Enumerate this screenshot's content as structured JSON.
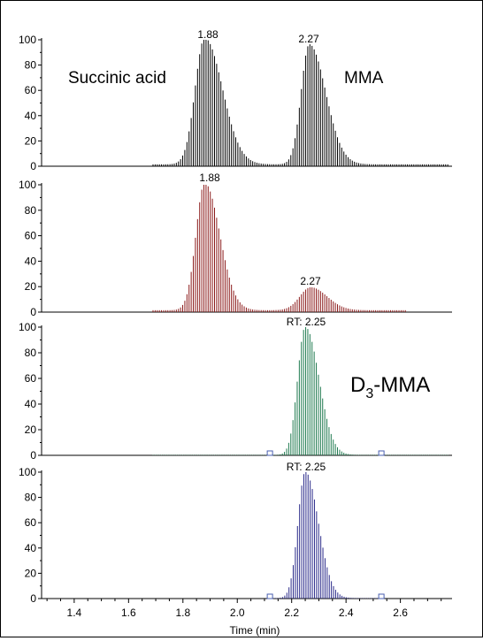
{
  "chart_data": [
    {
      "type": "line",
      "xlabel": "",
      "ylabel": "",
      "xlim": [
        1.28,
        2.79
      ],
      "ylim": [
        0,
        100
      ],
      "color": "#000000",
      "annotations": [
        "Succinic acid",
        "MMA"
      ],
      "peak_labels": [
        {
          "text": "1.88",
          "x": 1.88
        },
        {
          "text": "2.27",
          "x": 2.27
        }
      ],
      "series": [
        {
          "peaks": [
            {
              "center": 1.88,
              "height": 100,
              "sigma": 0.035,
              "tail": 0.065
            },
            {
              "center": 2.265,
              "height": 95,
              "sigma": 0.03,
              "tail": 0.06
            }
          ],
          "baseline": 1.5,
          "x_range": [
            1.69,
            2.78
          ]
        }
      ]
    },
    {
      "type": "line",
      "xlabel": "",
      "ylabel": "",
      "xlim": [
        1.28,
        2.79
      ],
      "ylim": [
        0,
        100
      ],
      "color": "#8b1a1a",
      "annotations": [],
      "peak_labels": [
        {
          "text": "1.88",
          "x": 1.88
        },
        {
          "text": "2.27",
          "x": 2.27
        }
      ],
      "series": [
        {
          "peaks": [
            {
              "center": 1.88,
              "height": 100,
              "sigma": 0.032,
              "tail": 0.055
            },
            {
              "center": 2.27,
              "height": 18,
              "sigma": 0.04,
              "tail": 0.06
            }
          ],
          "baseline": 1.5,
          "x_range": [
            1.69,
            2.62
          ]
        }
      ]
    },
    {
      "type": "line",
      "xlabel": "",
      "ylabel": "",
      "xlim": [
        1.28,
        2.79
      ],
      "ylim": [
        0,
        100
      ],
      "color": "#1f7a4f",
      "annotations": [
        "D3-MMA"
      ],
      "peak_labels": [
        {
          "text": "RT: 2.25",
          "x": 2.25
        }
      ],
      "series": [
        {
          "peaks": [
            {
              "center": 2.25,
              "height": 100,
              "sigma": 0.028,
              "tail": 0.05
            }
          ],
          "baseline": 0.3,
          "x_range": [
            1.69,
            2.78
          ]
        }
      ],
      "integration_markers": [
        2.12,
        2.53
      ]
    },
    {
      "type": "line",
      "xlabel": "Time (min)",
      "ylabel": "",
      "xlim": [
        1.28,
        2.79
      ],
      "ylim": [
        0,
        100
      ],
      "color": "#2a2a8a",
      "annotations": [],
      "peak_labels": [
        {
          "text": "RT: 2.25",
          "x": 2.25
        }
      ],
      "series": [
        {
          "peaks": [
            {
              "center": 2.25,
              "height": 100,
              "sigma": 0.027,
              "tail": 0.048
            }
          ],
          "baseline": 0.3,
          "x_range": [
            2.12,
            2.53
          ]
        }
      ],
      "integration_markers": [
        2.12,
        2.53
      ]
    }
  ],
  "x_ticks": [
    "1.4",
    "1.6",
    "1.8",
    "2.0",
    "2.2",
    "2.4",
    "2.6"
  ],
  "x_tick_values": [
    1.4,
    1.6,
    1.8,
    2.0,
    2.2,
    2.4,
    2.6
  ],
  "y_ticks": [
    "0",
    "20",
    "40",
    "60",
    "80",
    "100"
  ],
  "y_tick_values": [
    0,
    20,
    40,
    60,
    80,
    100
  ],
  "labels": {
    "p1_annot1": "Succinic acid",
    "p1_annot2": "MMA",
    "p1_peak1": "1.88",
    "p1_peak2": "2.27",
    "p2_peak1": "1.88",
    "p2_peak2": "2.27",
    "p3_rt": "RT: 2.25",
    "p3_annot_main": "D",
    "p3_annot_sub": "3",
    "p3_annot_rest": "-MMA",
    "p4_rt": "RT: 2.25",
    "xlabel": "Time (min)"
  }
}
